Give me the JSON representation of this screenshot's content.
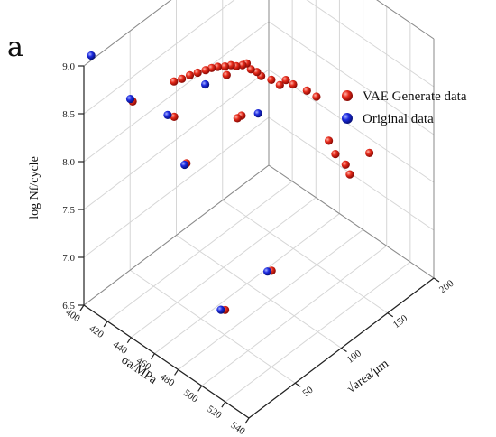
{
  "panel_label": "a",
  "chart_data": {
    "type": "scatter",
    "projection": "3d",
    "title": "",
    "grid": true,
    "legend_placement": "top-right",
    "axes": {
      "x": {
        "label": "σa/MPa",
        "range": [
          400,
          540
        ],
        "ticks": [
          "400",
          "420",
          "440",
          "460",
          "480",
          "500",
          "520",
          "540"
        ]
      },
      "y": {
        "label": "√area/μm",
        "range": [
          0,
          200
        ],
        "ticks": [
          "50",
          "100",
          "150",
          "200"
        ]
      },
      "z": {
        "label": "log Nf/cycle",
        "range": [
          6.5,
          9.0
        ],
        "ticks": [
          "6.5",
          "7.0",
          "7.5",
          "8.0",
          "8.5",
          "9.0"
        ]
      }
    },
    "series": [
      {
        "name": "VAE Generate data",
        "color": "#e01010",
        "points": [
          {
            "x": 410,
            "y": 40,
            "z": 8.42
          },
          {
            "x": 428,
            "y": 62,
            "z": 8.25
          },
          {
            "x": 420,
            "y": 72,
            "z": 8.48
          },
          {
            "x": 422,
            "y": 78,
            "z": 8.48
          },
          {
            "x": 424,
            "y": 84,
            "z": 8.49
          },
          {
            "x": 426,
            "y": 90,
            "z": 8.49
          },
          {
            "x": 428,
            "y": 96,
            "z": 8.49
          },
          {
            "x": 430,
            "y": 100,
            "z": 8.5
          },
          {
            "x": 432,
            "y": 104,
            "z": 8.5
          },
          {
            "x": 435,
            "y": 108,
            "z": 8.5
          },
          {
            "x": 437,
            "y": 112,
            "z": 8.5
          },
          {
            "x": 440,
            "y": 114,
            "z": 8.5
          },
          {
            "x": 442,
            "y": 118,
            "z": 8.5
          },
          {
            "x": 444,
            "y": 120,
            "z": 8.52
          },
          {
            "x": 438,
            "y": 106,
            "z": 8.45
          },
          {
            "x": 446,
            "y": 122,
            "z": 8.46
          },
          {
            "x": 448,
            "y": 126,
            "z": 8.42
          },
          {
            "x": 450,
            "y": 128,
            "z": 8.38
          },
          {
            "x": 454,
            "y": 134,
            "z": 8.33
          },
          {
            "x": 458,
            "y": 138,
            "z": 8.28
          },
          {
            "x": 460,
            "y": 142,
            "z": 8.32
          },
          {
            "x": 463,
            "y": 146,
            "z": 8.27
          },
          {
            "x": 470,
            "y": 152,
            "z": 8.22
          },
          {
            "x": 475,
            "y": 156,
            "z": 8.17
          },
          {
            "x": 444,
            "y": 110,
            "z": 8.02
          },
          {
            "x": 446,
            "y": 112,
            "z": 8.05
          },
          {
            "x": 498,
            "y": 140,
            "z": 8.02
          },
          {
            "x": 502,
            "y": 142,
            "z": 7.9
          },
          {
            "x": 506,
            "y": 148,
            "z": 7.78
          },
          {
            "x": 508,
            "y": 150,
            "z": 7.68
          },
          {
            "x": 512,
            "y": 166,
            "z": 7.82
          },
          {
            "x": 445,
            "y": 200,
            "z": 8.72
          },
          {
            "x": 495,
            "y": 82,
            "z": 7.06
          },
          {
            "x": 490,
            "y": 38,
            "z": 6.93
          },
          {
            "x": 440,
            "y": 60,
            "z": 7.88
          }
        ]
      },
      {
        "name": "Original data",
        "color": "#1020d0",
        "points": [
          {
            "x": 400,
            "y": 8,
            "z": 9.05
          },
          {
            "x": 408,
            "y": 40,
            "z": 8.43
          },
          {
            "x": 424,
            "y": 60,
            "z": 8.25
          },
          {
            "x": 434,
            "y": 88,
            "z": 8.45
          },
          {
            "x": 460,
            "y": 112,
            "z": 8.19
          },
          {
            "x": 440,
            "y": 58,
            "z": 7.88
          },
          {
            "x": 493,
            "y": 80,
            "z": 7.05
          },
          {
            "x": 488,
            "y": 36,
            "z": 6.93
          }
        ]
      }
    ]
  }
}
